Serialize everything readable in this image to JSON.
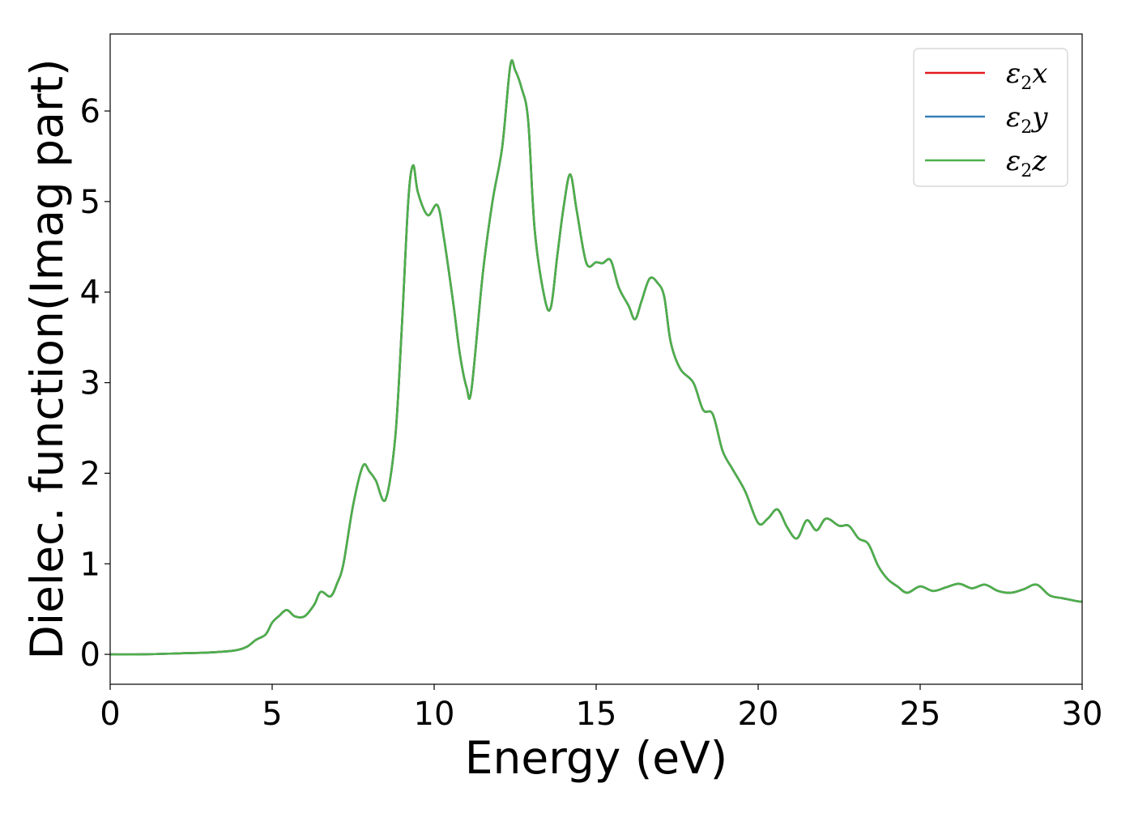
{
  "chart_data": {
    "type": "line",
    "title": "",
    "xlabel": "Energy (eV)",
    "ylabel": "Dielec. function(Imag part)",
    "xlim": [
      0,
      30
    ],
    "ylim": [
      -0.33,
      6.85
    ],
    "xticks": [
      0,
      5,
      10,
      15,
      20,
      25,
      30
    ],
    "yticks": [
      0,
      1,
      2,
      3,
      4,
      5,
      6
    ],
    "grid": false,
    "legend_position": "top-right",
    "series": [
      {
        "name": "ε₂x",
        "legend_base": "ε",
        "legend_sub": "2",
        "legend_var": "x",
        "color": "#e41a1c",
        "x": [
          0,
          1,
          2,
          3,
          3.8,
          4.2,
          4.5,
          4.8,
          5.0,
          5.2,
          5.45,
          5.7,
          6.0,
          6.3,
          6.5,
          6.8,
          7.0,
          7.2,
          7.5,
          7.8,
          8.0,
          8.2,
          8.5,
          8.8,
          9.0,
          9.2,
          9.35,
          9.5,
          9.8,
          10.1,
          10.3,
          10.6,
          10.8,
          11.0,
          11.15,
          11.5,
          11.8,
          12.1,
          12.35,
          12.5,
          12.7,
          12.9,
          13.1,
          13.4,
          13.6,
          13.8,
          14.0,
          14.2,
          14.4,
          14.7,
          15.0,
          15.2,
          15.45,
          15.7,
          16.0,
          16.2,
          16.4,
          16.65,
          16.9,
          17.1,
          17.3,
          17.6,
          18.0,
          18.3,
          18.6,
          18.9,
          19.2,
          19.6,
          20.0,
          20.3,
          20.6,
          20.9,
          21.2,
          21.5,
          21.8,
          22.1,
          22.5,
          22.8,
          23.1,
          23.4,
          23.7,
          24.0,
          24.3,
          24.6,
          25.0,
          25.4,
          25.8,
          26.2,
          26.6,
          27.0,
          27.4,
          27.8,
          28.2,
          28.6,
          29.0,
          29.4,
          29.8,
          30.0
        ],
        "y": [
          0.0,
          0.0,
          0.01,
          0.02,
          0.04,
          0.08,
          0.16,
          0.22,
          0.35,
          0.42,
          0.49,
          0.42,
          0.42,
          0.55,
          0.69,
          0.64,
          0.78,
          1.0,
          1.65,
          2.08,
          2.02,
          1.92,
          1.71,
          2.4,
          3.6,
          5.0,
          5.4,
          5.1,
          4.85,
          4.96,
          4.6,
          3.85,
          3.3,
          2.95,
          2.92,
          4.2,
          5.0,
          5.6,
          6.5,
          6.45,
          6.25,
          5.9,
          4.7,
          3.95,
          3.83,
          4.4,
          4.95,
          5.3,
          4.9,
          4.32,
          4.33,
          4.32,
          4.35,
          4.05,
          3.85,
          3.7,
          3.9,
          4.15,
          4.1,
          3.95,
          3.45,
          3.15,
          3.0,
          2.7,
          2.65,
          2.25,
          2.05,
          1.8,
          1.45,
          1.5,
          1.6,
          1.4,
          1.28,
          1.48,
          1.37,
          1.5,
          1.42,
          1.42,
          1.28,
          1.22,
          0.98,
          0.83,
          0.75,
          0.68,
          0.75,
          0.7,
          0.74,
          0.78,
          0.73,
          0.77,
          0.7,
          0.68,
          0.72,
          0.77,
          0.65,
          0.62,
          0.59,
          0.58
        ]
      },
      {
        "name": "ε₂y",
        "legend_base": "ε",
        "legend_sub": "2",
        "legend_var": "y",
        "color": "#377eb8",
        "x": [
          0,
          1,
          2,
          3,
          3.8,
          4.2,
          4.5,
          4.8,
          5.0,
          5.2,
          5.45,
          5.7,
          6.0,
          6.3,
          6.5,
          6.8,
          7.0,
          7.2,
          7.5,
          7.8,
          8.0,
          8.2,
          8.5,
          8.8,
          9.0,
          9.2,
          9.35,
          9.5,
          9.8,
          10.1,
          10.3,
          10.6,
          10.8,
          11.0,
          11.15,
          11.5,
          11.8,
          12.1,
          12.35,
          12.5,
          12.7,
          12.9,
          13.1,
          13.4,
          13.6,
          13.8,
          14.0,
          14.2,
          14.4,
          14.7,
          15.0,
          15.2,
          15.45,
          15.7,
          16.0,
          16.2,
          16.4,
          16.65,
          16.9,
          17.1,
          17.3,
          17.6,
          18.0,
          18.3,
          18.6,
          18.9,
          19.2,
          19.6,
          20.0,
          20.3,
          20.6,
          20.9,
          21.2,
          21.5,
          21.8,
          22.1,
          22.5,
          22.8,
          23.1,
          23.4,
          23.7,
          24.0,
          24.3,
          24.6,
          25.0,
          25.4,
          25.8,
          26.2,
          26.6,
          27.0,
          27.4,
          27.8,
          28.2,
          28.6,
          29.0,
          29.4,
          29.8,
          30.0
        ],
        "y": [
          0.0,
          0.0,
          0.01,
          0.02,
          0.04,
          0.08,
          0.16,
          0.22,
          0.35,
          0.42,
          0.49,
          0.42,
          0.42,
          0.55,
          0.69,
          0.64,
          0.78,
          1.0,
          1.65,
          2.08,
          2.02,
          1.92,
          1.71,
          2.4,
          3.6,
          5.0,
          5.4,
          5.1,
          4.85,
          4.96,
          4.6,
          3.85,
          3.3,
          2.95,
          2.92,
          4.2,
          5.0,
          5.6,
          6.5,
          6.45,
          6.25,
          5.9,
          4.7,
          3.95,
          3.83,
          4.4,
          4.95,
          5.3,
          4.9,
          4.32,
          4.33,
          4.32,
          4.35,
          4.05,
          3.85,
          3.7,
          3.9,
          4.15,
          4.1,
          3.95,
          3.45,
          3.15,
          3.0,
          2.7,
          2.65,
          2.25,
          2.05,
          1.8,
          1.45,
          1.5,
          1.6,
          1.4,
          1.28,
          1.48,
          1.37,
          1.5,
          1.42,
          1.42,
          1.28,
          1.22,
          0.98,
          0.83,
          0.75,
          0.68,
          0.75,
          0.7,
          0.74,
          0.78,
          0.73,
          0.77,
          0.7,
          0.68,
          0.72,
          0.77,
          0.65,
          0.62,
          0.59,
          0.58
        ]
      },
      {
        "name": "ε₂z",
        "legend_base": "ε",
        "legend_sub": "2",
        "legend_var": "z",
        "color": "#4daf4a",
        "x": [
          0,
          1,
          2,
          3,
          3.8,
          4.2,
          4.5,
          4.8,
          5.0,
          5.2,
          5.45,
          5.7,
          6.0,
          6.3,
          6.5,
          6.8,
          7.0,
          7.2,
          7.5,
          7.8,
          8.0,
          8.2,
          8.5,
          8.8,
          9.0,
          9.2,
          9.35,
          9.5,
          9.8,
          10.1,
          10.3,
          10.6,
          10.8,
          11.0,
          11.15,
          11.5,
          11.8,
          12.1,
          12.35,
          12.5,
          12.7,
          12.9,
          13.1,
          13.4,
          13.6,
          13.8,
          14.0,
          14.2,
          14.4,
          14.7,
          15.0,
          15.2,
          15.45,
          15.7,
          16.0,
          16.2,
          16.4,
          16.65,
          16.9,
          17.1,
          17.3,
          17.6,
          18.0,
          18.3,
          18.6,
          18.9,
          19.2,
          19.6,
          20.0,
          20.3,
          20.6,
          20.9,
          21.2,
          21.5,
          21.8,
          22.1,
          22.5,
          22.8,
          23.1,
          23.4,
          23.7,
          24.0,
          24.3,
          24.6,
          25.0,
          25.4,
          25.8,
          26.2,
          26.6,
          27.0,
          27.4,
          27.8,
          28.2,
          28.6,
          29.0,
          29.4,
          29.8,
          30.0
        ],
        "y": [
          0.0,
          0.0,
          0.01,
          0.02,
          0.04,
          0.08,
          0.16,
          0.22,
          0.35,
          0.42,
          0.49,
          0.42,
          0.42,
          0.55,
          0.69,
          0.64,
          0.78,
          1.0,
          1.65,
          2.08,
          2.02,
          1.92,
          1.71,
          2.4,
          3.6,
          5.0,
          5.4,
          5.1,
          4.85,
          4.96,
          4.6,
          3.85,
          3.3,
          2.95,
          2.92,
          4.2,
          5.0,
          5.6,
          6.5,
          6.45,
          6.25,
          5.9,
          4.7,
          3.95,
          3.83,
          4.4,
          4.95,
          5.3,
          4.9,
          4.32,
          4.33,
          4.32,
          4.35,
          4.05,
          3.85,
          3.7,
          3.9,
          4.15,
          4.1,
          3.95,
          3.45,
          3.15,
          3.0,
          2.7,
          2.65,
          2.25,
          2.05,
          1.8,
          1.45,
          1.5,
          1.6,
          1.4,
          1.28,
          1.48,
          1.37,
          1.5,
          1.42,
          1.42,
          1.28,
          1.22,
          0.98,
          0.83,
          0.75,
          0.68,
          0.75,
          0.7,
          0.74,
          0.78,
          0.73,
          0.77,
          0.7,
          0.68,
          0.72,
          0.77,
          0.65,
          0.62,
          0.59,
          0.58
        ]
      }
    ]
  }
}
